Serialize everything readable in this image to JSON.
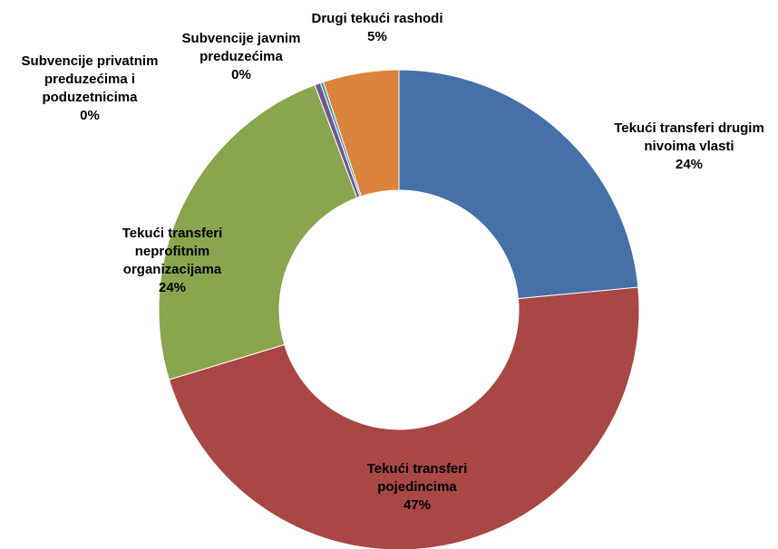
{
  "chart_data": {
    "type": "pie",
    "variant": "donut",
    "title": "",
    "legend": "none",
    "slices": [
      {
        "label_lines": [
          "Tekući transferi drugim",
          "nivoima vlasti"
        ],
        "value_label": "24%",
        "value": 23.5,
        "color": "#4571A8"
      },
      {
        "label_lines": [
          "Tekući transferi",
          "pojedincima"
        ],
        "value_label": "47%",
        "value": 46.8,
        "color": "#A94745"
      },
      {
        "label_lines": [
          "Tekući transferi",
          "neprofitnim",
          "organizacijama"
        ],
        "value_label": "24%",
        "value": 24.0,
        "color": "#89A54E"
      },
      {
        "label_lines": [
          "Subvencije privatnim",
          "preduzećima i",
          "poduzetnicima"
        ],
        "value_label": "0%",
        "value": 0.4,
        "color": "#71588F"
      },
      {
        "label_lines": [
          "Subvencije javnim",
          "preduzećima"
        ],
        "value_label": "0%",
        "value": 0.2,
        "color": "#4198AF"
      },
      {
        "label_lines": [
          "Drugi tekući rashodi"
        ],
        "value_label": "5%",
        "value": 5.1,
        "color": "#DB843D"
      }
    ]
  }
}
